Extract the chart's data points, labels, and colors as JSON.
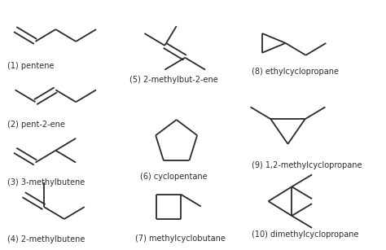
{
  "bg_color": "#ffffff",
  "line_color": "#2a2a2a",
  "text_color": "#2a2a2a",
  "label_fontsize": 7.0,
  "structures": {
    "pentene": {
      "label": "(1) pentene"
    },
    "pent2ene": {
      "label": "(2) pent-2-ene"
    },
    "methylbutene3": {
      "label": "(3) 3-methylbutene"
    },
    "methylbutene2": {
      "label": "(4) 2-methylbutene"
    },
    "methylbut2ene": {
      "label": "(5) 2-methylbut-2-ene"
    },
    "cyclopentane": {
      "label": "(6) cyclopentane"
    },
    "methylcyclobutane": {
      "label": "(7) methylcyclobutane"
    },
    "ethylcyclopropane": {
      "label": "(8) ethylcyclopropane"
    },
    "methylcyclopropane": {
      "label": "(9) 1,2-methylcyclopropane"
    },
    "dimethylcyclopropane": {
      "label": "(10) dimethylcyclopropane"
    }
  }
}
